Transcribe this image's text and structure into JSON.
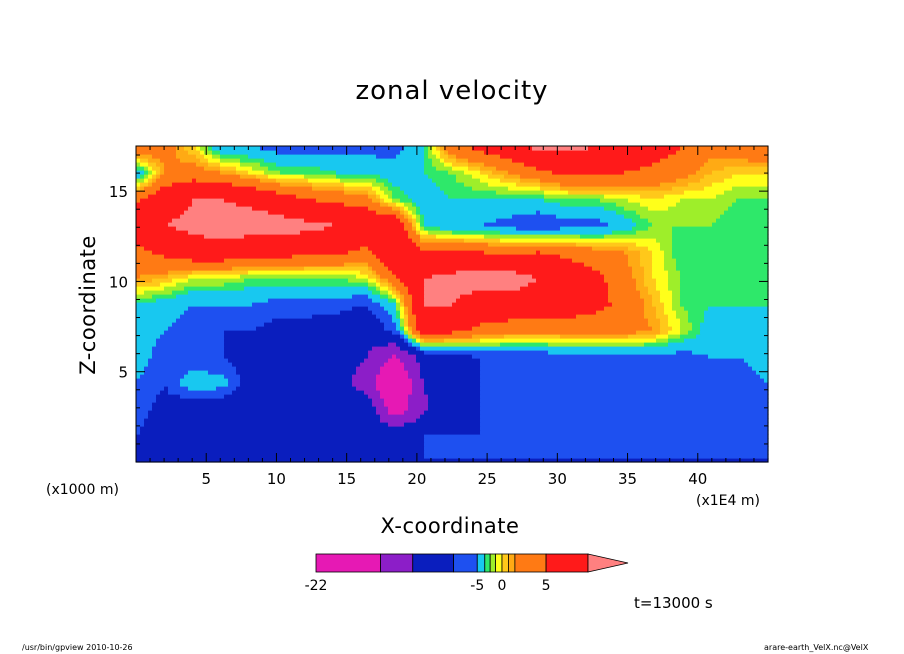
{
  "chart_data": {
    "type": "heatmap",
    "title": "zonal velocity",
    "xlabel": "X-coordinate",
    "ylabel": "Z-coordinate",
    "x_unit": "(×1000 m)",
    "x_unit_right": "(×1E4 m)",
    "xlim": [
      0,
      45
    ],
    "ylim": [
      0,
      17.5
    ],
    "x_ticks": [
      5,
      10,
      15,
      20,
      25,
      30,
      35,
      40
    ],
    "y_ticks": [
      5,
      10,
      15
    ],
    "colorbar": {
      "levels": [
        -22,
        -17,
        -12,
        -7,
        -5,
        -3,
        -2,
        -1,
        0,
        1,
        2,
        5,
        10,
        15,
        20
      ],
      "colors": [
        "#e619b4",
        "#8c1ec8",
        "#0a1ebe",
        "#1e50f0",
        "#18c8f0",
        "#2ee86a",
        "#9eee2a",
        "#ffff1a",
        "#ffc81a",
        "#ffaa14",
        "#ff7a14",
        "#ff1a1a",
        "#ff8080"
      ],
      "tick_labels": [
        "-22",
        "-5",
        "0",
        "5"
      ],
      "extend": "max"
    },
    "field": [
      [
        -7,
        -8,
        -9,
        -9,
        -9,
        -8,
        -7,
        -7,
        -7,
        -7,
        -7,
        -7,
        -7,
        -7,
        -7,
        -7,
        -7,
        -7,
        -7,
        -7,
        -7,
        -7,
        -7
      ],
      [
        -7,
        -9,
        -10,
        -10,
        -10,
        -9,
        -8,
        -8,
        -8,
        -8,
        -7,
        -7,
        -7,
        -7,
        -7,
        -7,
        -7,
        -7,
        -7,
        -7,
        -7,
        -7,
        -7
      ],
      [
        -6,
        -8,
        -10,
        -10,
        -10,
        -9,
        -9,
        -9,
        -8,
        -20,
        -13,
        -8,
        -7,
        -7,
        -7,
        -7,
        -7,
        -7,
        -7,
        -7,
        -7,
        -6,
        -6
      ],
      [
        -5,
        -7,
        -3,
        -4,
        -9,
        -9,
        -9,
        -10,
        -14,
        -24,
        -12,
        -9,
        -7,
        -7,
        -7,
        -7,
        -7,
        -7,
        -7,
        -7,
        -7,
        -6,
        -5
      ],
      [
        -4,
        -6,
        -7,
        -7,
        -8,
        -9,
        -9,
        -10,
        -12,
        -18,
        -10,
        -8,
        -7,
        -7,
        -7,
        -6,
        -6,
        -6,
        -6,
        -6,
        -5,
        -5,
        -4
      ],
      [
        -4,
        -5,
        -6,
        -7,
        -7,
        -8,
        -8,
        -9,
        -10,
        -6,
        8,
        6,
        4,
        3,
        3,
        3,
        3,
        3,
        2,
        -1,
        -4,
        -4,
        -4
      ],
      [
        -3,
        -4,
        -5,
        -5,
        -5,
        -6,
        -6,
        -6,
        -7,
        -3,
        10,
        10,
        8,
        8,
        8,
        7,
        6,
        4,
        1,
        -2,
        -3,
        -3,
        -3
      ],
      [
        2,
        1,
        -1,
        -1,
        -2,
        -2,
        -2,
        -2,
        -1,
        4,
        10,
        11,
        12,
        12,
        10,
        8,
        6,
        3,
        0,
        -2,
        -3,
        -3,
        -3
      ],
      [
        4,
        6,
        8,
        8,
        7,
        7,
        6,
        6,
        4,
        10,
        5,
        6,
        5,
        4,
        5,
        4,
        3,
        2,
        0,
        -3,
        -3,
        -3,
        -3
      ],
      [
        8,
        10,
        11,
        12,
        12,
        12,
        11,
        10,
        9,
        9,
        -3,
        -5,
        -5,
        -6,
        -7,
        -6,
        -6,
        -4,
        -2,
        -2,
        -2,
        -3,
        -3
      ],
      [
        4,
        8,
        10,
        10,
        9,
        7,
        5,
        4,
        3,
        -2,
        -4,
        -3,
        -3,
        -3,
        -3,
        -2,
        -2,
        -1,
        0,
        -1,
        -1,
        -2,
        -2
      ],
      [
        -5,
        2,
        3,
        2,
        0,
        -2,
        -2,
        -3,
        -3,
        -4,
        -3,
        -2,
        0,
        2,
        4,
        6,
        6,
        5,
        4,
        3,
        1,
        0,
        0
      ],
      [
        5,
        3,
        0,
        -5,
        -5,
        -6,
        -6,
        -6,
        -6,
        -6,
        -3,
        4,
        6,
        8,
        11,
        11,
        10,
        9,
        7,
        5,
        3,
        4,
        5
      ]
    ],
    "field_rows": "bottom-to-top, z from 0 to 17.5",
    "field_cols": "left-to-right, x from 0 to 45"
  },
  "labels": {
    "title": "zonal velocity",
    "xlabel": "X-coordinate",
    "ylabel": "Z-coordinate",
    "x_unit_left": "(x1000 m)",
    "x_unit_right": "(x1E4 m)",
    "time": "t=13000 s",
    "footer_left": "/usr/bin/gpview   2010-10-26",
    "footer_right": "arare-earth_VelX.nc@VelX"
  }
}
